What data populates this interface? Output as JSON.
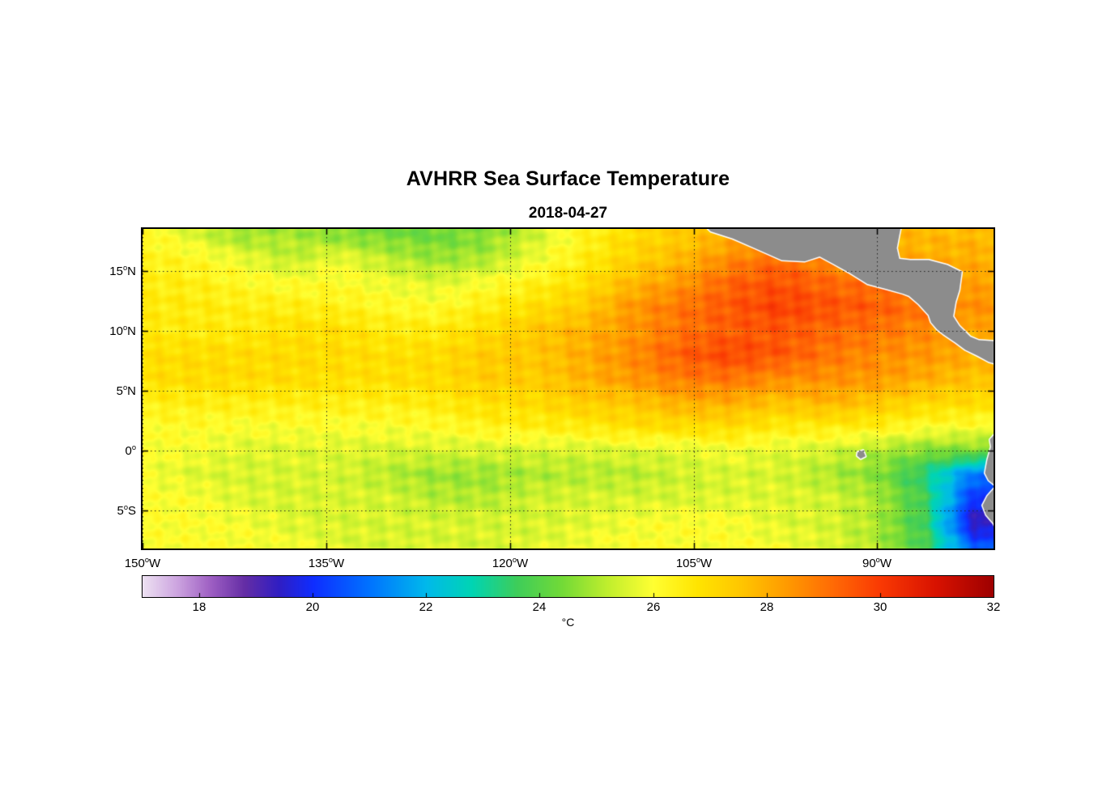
{
  "title": "AVHRR Sea Surface Temperature",
  "subtitle": "2018-04-27",
  "colorbar": {
    "unit": "°C",
    "ticks": [
      18,
      20,
      22,
      24,
      26,
      28,
      30,
      32
    ],
    "range": [
      17,
      32
    ]
  },
  "axes": {
    "degree_symbol": "o",
    "xticks": [
      {
        "num": "150",
        "hemi": "W",
        "lon": -150
      },
      {
        "num": "135",
        "hemi": "W",
        "lon": -135
      },
      {
        "num": "120",
        "hemi": "W",
        "lon": -120
      },
      {
        "num": "105",
        "hemi": "W",
        "lon": -105
      },
      {
        "num": "90",
        "hemi": "W",
        "lon": -90
      }
    ],
    "yticks": [
      {
        "num": "15",
        "hemi": "N",
        "lat": 15
      },
      {
        "num": "10",
        "hemi": "N",
        "lat": 10
      },
      {
        "num": "5",
        "hemi": "N",
        "lat": 5
      },
      {
        "num": "0",
        "hemi": "",
        "lat": 0
      },
      {
        "num": "5",
        "hemi": "S",
        "lat": -5
      }
    ]
  },
  "chart_data": {
    "type": "heatmap",
    "title": "AVHRR Sea Surface Temperature",
    "subtitle": "2018-04-27",
    "units": "°C",
    "lon_range": [
      -150,
      -80.5
    ],
    "lat_range": [
      -8.2,
      18.5
    ],
    "temp_range": [
      17,
      32
    ],
    "gridline_lons": [
      -150,
      -135,
      -120,
      -105,
      -90
    ],
    "gridline_lats": [
      15,
      10,
      5,
      0,
      -5
    ],
    "lon": [
      -150,
      -146,
      -142,
      -138,
      -134,
      -130,
      -126,
      -122,
      -118,
      -114,
      -110,
      -106,
      -102,
      -98,
      -94,
      -90,
      -86,
      -82
    ],
    "lat": [
      18,
      16,
      14,
      12,
      10,
      8,
      6,
      4,
      2,
      0,
      -2,
      -4,
      -6,
      -8
    ],
    "sst": [
      [
        26.3,
        25.6,
        24.8,
        25.0,
        24.6,
        24.4,
        24.3,
        24.6,
        25.4,
        26.3,
        27.0,
        27.4,
        27.9,
        28.2,
        28.0,
        27.8,
        27.8,
        27.8
      ],
      [
        26.4,
        26.2,
        25.8,
        25.2,
        25.8,
        25.2,
        24.8,
        25.0,
        25.8,
        26.5,
        27.2,
        27.8,
        28.6,
        29.2,
        28.6,
        28.2,
        28.0,
        28.0
      ],
      [
        26.5,
        26.5,
        26.2,
        26.0,
        26.1,
        25.8,
        25.6,
        26.0,
        26.4,
        26.9,
        27.8,
        28.4,
        29.3,
        29.6,
        29.2,
        29.0,
        28.6,
        28.2
      ],
      [
        26.6,
        26.6,
        26.5,
        26.5,
        26.4,
        26.2,
        26.1,
        26.5,
        26.9,
        27.4,
        28.4,
        29.0,
        29.5,
        29.9,
        29.6,
        29.4,
        29.0,
        28.5
      ],
      [
        26.6,
        26.6,
        26.6,
        26.9,
        26.9,
        26.6,
        26.6,
        27.0,
        27.5,
        27.9,
        28.4,
        29.0,
        29.4,
        29.5,
        29.2,
        29.0,
        28.6,
        28.1
      ],
      [
        26.9,
        27.0,
        27.0,
        27.0,
        27.0,
        26.9,
        27.0,
        27.4,
        27.5,
        28.0,
        28.6,
        29.4,
        29.8,
        29.5,
        29.0,
        28.6,
        28.4,
        28.0
      ],
      [
        26.9,
        27.0,
        27.0,
        27.0,
        26.9,
        26.9,
        27.0,
        27.4,
        27.4,
        27.9,
        28.4,
        28.9,
        29.0,
        28.6,
        28.5,
        28.4,
        28.0,
        27.6
      ],
      [
        26.5,
        26.5,
        26.5,
        26.5,
        26.5,
        26.5,
        26.6,
        26.9,
        27.0,
        27.4,
        27.5,
        28.0,
        28.0,
        27.6,
        27.9,
        27.5,
        27.1,
        27.0
      ],
      [
        26.1,
        26.1,
        26.0,
        26.0,
        26.0,
        26.0,
        26.1,
        26.4,
        26.5,
        26.6,
        26.9,
        27.0,
        27.0,
        26.6,
        26.6,
        26.5,
        26.1,
        26.0
      ],
      [
        26.0,
        25.9,
        25.6,
        25.6,
        25.6,
        25.5,
        25.5,
        25.5,
        25.5,
        25.5,
        25.6,
        25.6,
        25.9,
        25.6,
        25.5,
        25.0,
        24.6,
        24.5
      ],
      [
        25.9,
        25.6,
        25.5,
        25.5,
        25.5,
        25.1,
        24.8,
        24.8,
        25.0,
        25.1,
        25.1,
        25.4,
        25.5,
        25.5,
        25.0,
        24.6,
        23.2,
        21.0
      ],
      [
        26.0,
        26.0,
        25.6,
        25.5,
        25.5,
        25.5,
        25.1,
        25.1,
        25.4,
        25.5,
        25.5,
        25.5,
        25.6,
        25.6,
        25.5,
        25.0,
        23.6,
        20.0
      ],
      [
        26.0,
        26.0,
        25.9,
        25.6,
        25.5,
        25.5,
        25.5,
        25.5,
        25.5,
        25.6,
        25.9,
        26.0,
        26.0,
        25.6,
        25.5,
        25.0,
        23.5,
        19.2
      ],
      [
        26.0,
        26.0,
        26.0,
        25.9,
        25.6,
        25.5,
        25.5,
        25.5,
        25.6,
        25.9,
        26.0,
        26.0,
        26.0,
        25.9,
        25.6,
        25.0,
        23.8,
        20.5
      ]
    ],
    "colormap_stops": [
      [
        17.0,
        237,
        225,
        242
      ],
      [
        17.6,
        205,
        165,
        224
      ],
      [
        18.2,
        158,
        95,
        195
      ],
      [
        18.8,
        100,
        45,
        165
      ],
      [
        19.4,
        48,
        30,
        195
      ],
      [
        20.0,
        15,
        45,
        255
      ],
      [
        21.0,
        0,
        115,
        255
      ],
      [
        22.0,
        0,
        185,
        235
      ],
      [
        22.8,
        0,
        212,
        180
      ],
      [
        23.6,
        62,
        205,
        90
      ],
      [
        24.4,
        115,
        218,
        55
      ],
      [
        25.2,
        192,
        238,
        45
      ],
      [
        26.0,
        255,
        255,
        50
      ],
      [
        26.8,
        255,
        228,
        0
      ],
      [
        27.6,
        255,
        196,
        0
      ],
      [
        28.4,
        255,
        152,
        0
      ],
      [
        29.2,
        255,
        105,
        5
      ],
      [
        30.0,
        250,
        58,
        3
      ],
      [
        31.0,
        216,
        18,
        0
      ],
      [
        32.0,
        158,
        0,
        0
      ]
    ],
    "land_color": "#8c8c8c",
    "coast_color": "#ffffff",
    "gridline_color": "#222222",
    "land_polygons": {
      "central_america": [
        [
          -104.3,
          19.0
        ],
        [
          -103.6,
          18.3
        ],
        [
          -101.8,
          17.7
        ],
        [
          -100.0,
          16.9
        ],
        [
          -97.8,
          15.9
        ],
        [
          -95.9,
          15.8
        ],
        [
          -94.7,
          16.2
        ],
        [
          -93.6,
          15.6
        ],
        [
          -92.2,
          14.8
        ],
        [
          -90.8,
          13.9
        ],
        [
          -89.3,
          13.5
        ],
        [
          -87.9,
          13.1
        ],
        [
          -87.4,
          12.9
        ],
        [
          -86.6,
          12.2
        ],
        [
          -85.8,
          11.3
        ],
        [
          -85.6,
          10.7
        ],
        [
          -85.1,
          10.1
        ],
        [
          -84.6,
          9.7
        ],
        [
          -83.6,
          9.0
        ],
        [
          -82.8,
          8.4
        ],
        [
          -81.8,
          7.9
        ],
        [
          -80.9,
          7.4
        ],
        [
          -80.2,
          7.2
        ],
        [
          -80.2,
          9.1
        ],
        [
          -81.7,
          9.2
        ],
        [
          -82.4,
          9.5
        ],
        [
          -83.3,
          10.4
        ],
        [
          -83.8,
          11.2
        ],
        [
          -83.6,
          12.4
        ],
        [
          -83.3,
          13.4
        ],
        [
          -83.1,
          14.9
        ],
        [
          -84.3,
          15.5
        ],
        [
          -85.8,
          15.9
        ],
        [
          -87.3,
          15.9
        ],
        [
          -88.2,
          16.0
        ],
        [
          -88.4,
          16.9
        ],
        [
          -88.2,
          18.0
        ],
        [
          -88.0,
          19.0
        ]
      ],
      "south_america": [
        [
          -80.2,
          1.6
        ],
        [
          -80.8,
          0.9
        ],
        [
          -80.7,
          0.3
        ],
        [
          -81.0,
          -0.8
        ],
        [
          -81.2,
          -1.9
        ],
        [
          -80.9,
          -2.5
        ],
        [
          -80.3,
          -3.0
        ],
        [
          -81.0,
          -3.8
        ],
        [
          -81.4,
          -4.6
        ],
        [
          -81.1,
          -5.4
        ],
        [
          -80.5,
          -6.1
        ],
        [
          -80.2,
          -6.8
        ],
        [
          -80.2,
          -8.5
        ]
      ],
      "galapagos": [
        [
          -91.6,
          -0.15
        ],
        [
          -91.15,
          0.0
        ],
        [
          -90.95,
          -0.5
        ],
        [
          -91.35,
          -0.7
        ],
        [
          -91.65,
          -0.45
        ]
      ]
    }
  }
}
